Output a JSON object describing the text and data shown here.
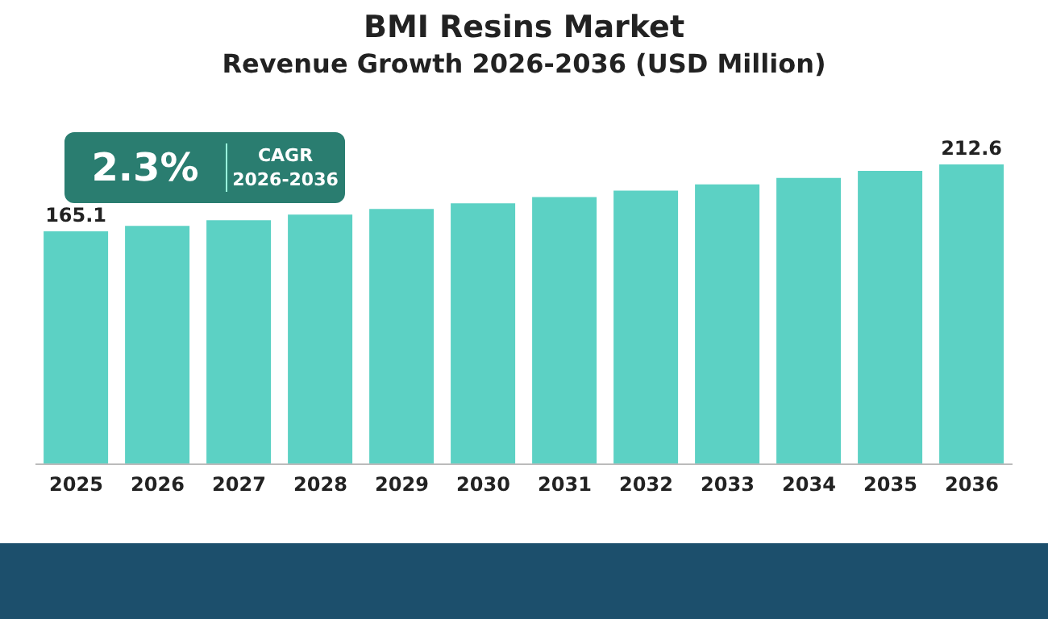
{
  "chart_data": {
    "type": "bar",
    "title": "BMI Resins Market",
    "subtitle": "Revenue Growth 2026-2036 (USD Million)",
    "categories": [
      "2025",
      "2026",
      "2027",
      "2028",
      "2029",
      "2030",
      "2031",
      "2032",
      "2033",
      "2034",
      "2035",
      "2036"
    ],
    "values": [
      165.1,
      169,
      173,
      177,
      181,
      185,
      189.5,
      194,
      198.5,
      203,
      208,
      212.6
    ],
    "value_labels": [
      "165.1",
      null,
      null,
      null,
      null,
      null,
      null,
      null,
      null,
      null,
      null,
      "212.6"
    ],
    "color": "#5cd1c4",
    "annotations": [
      "2.3%",
      "CAGR 2026-2036"
    ]
  }
}
